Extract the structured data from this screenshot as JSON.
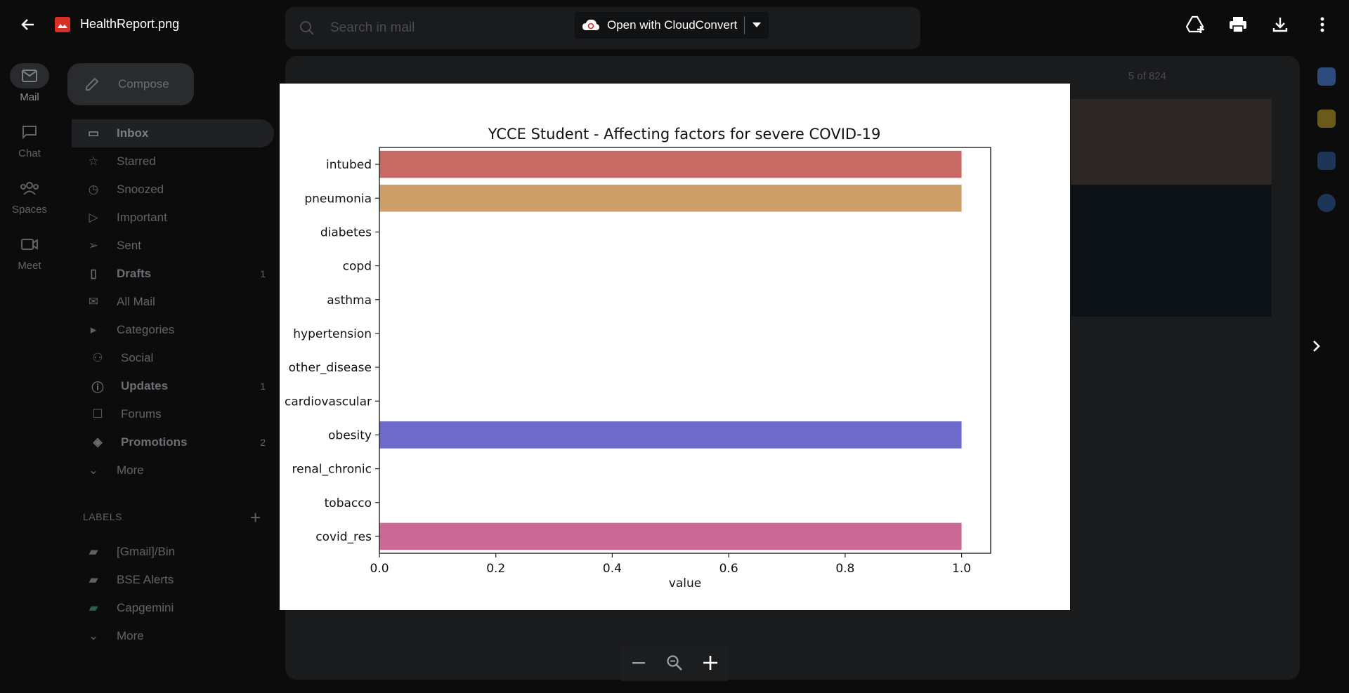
{
  "viewer": {
    "file_name": "HealthReport.png",
    "open_with_label": "Open with CloudConvert"
  },
  "gmail_bg": {
    "search_placeholder": "Search in mail",
    "compose_label": "Compose",
    "rail": [
      {
        "label": "Mail",
        "icon": "mail-icon"
      },
      {
        "label": "Chat",
        "icon": "chat-icon"
      },
      {
        "label": "Spaces",
        "icon": "spaces-icon"
      },
      {
        "label": "Meet",
        "icon": "meet-icon"
      }
    ],
    "nav": [
      {
        "label": "Inbox",
        "count": ""
      },
      {
        "label": "Starred",
        "count": ""
      },
      {
        "label": "Snoozed",
        "count": ""
      },
      {
        "label": "Important",
        "count": ""
      },
      {
        "label": "Sent",
        "count": ""
      },
      {
        "label": "Drafts",
        "count": "1"
      },
      {
        "label": "All Mail",
        "count": ""
      },
      {
        "label": "Categories",
        "count": ""
      },
      {
        "label": "Social",
        "count": ""
      },
      {
        "label": "Updates",
        "count": "1"
      },
      {
        "label": "Forums",
        "count": ""
      },
      {
        "label": "Promotions",
        "count": "2"
      },
      {
        "label": "More",
        "count": ""
      }
    ],
    "labels_heading": "LABELS",
    "labels": [
      "[Gmail]/Bin",
      "BSE Alerts",
      "Capgemini",
      "More"
    ],
    "pagination": "5 of 824"
  },
  "chart_data": {
    "type": "bar",
    "orientation": "horizontal",
    "title": "YCCE Student - Affecting factors for severe COVID-19",
    "xlabel": "value",
    "ylabel": "",
    "categories": [
      "intubed",
      "pneumonia",
      "diabetes",
      "copd",
      "asthma",
      "hypertension",
      "other_disease",
      "cardiovascular",
      "obesity",
      "renal_chronic",
      "tobacco",
      "covid_res"
    ],
    "values": [
      1,
      1,
      0,
      0,
      0,
      0,
      0,
      0,
      1,
      0,
      0,
      1
    ],
    "colors": [
      "#c86a64",
      "#cc9e68",
      "#b6b66a",
      "#8bb86a",
      "#6ab86a",
      "#6ab88b",
      "#6ab6b6",
      "#6a8bb8",
      "#6d6acc",
      "#8b6ab8",
      "#b66ab6",
      "#cc6a95"
    ],
    "xticks": [
      "0.0",
      "0.2",
      "0.4",
      "0.6",
      "0.8",
      "1.0"
    ],
    "xlim": [
      0,
      1.05
    ],
    "grid": false
  }
}
